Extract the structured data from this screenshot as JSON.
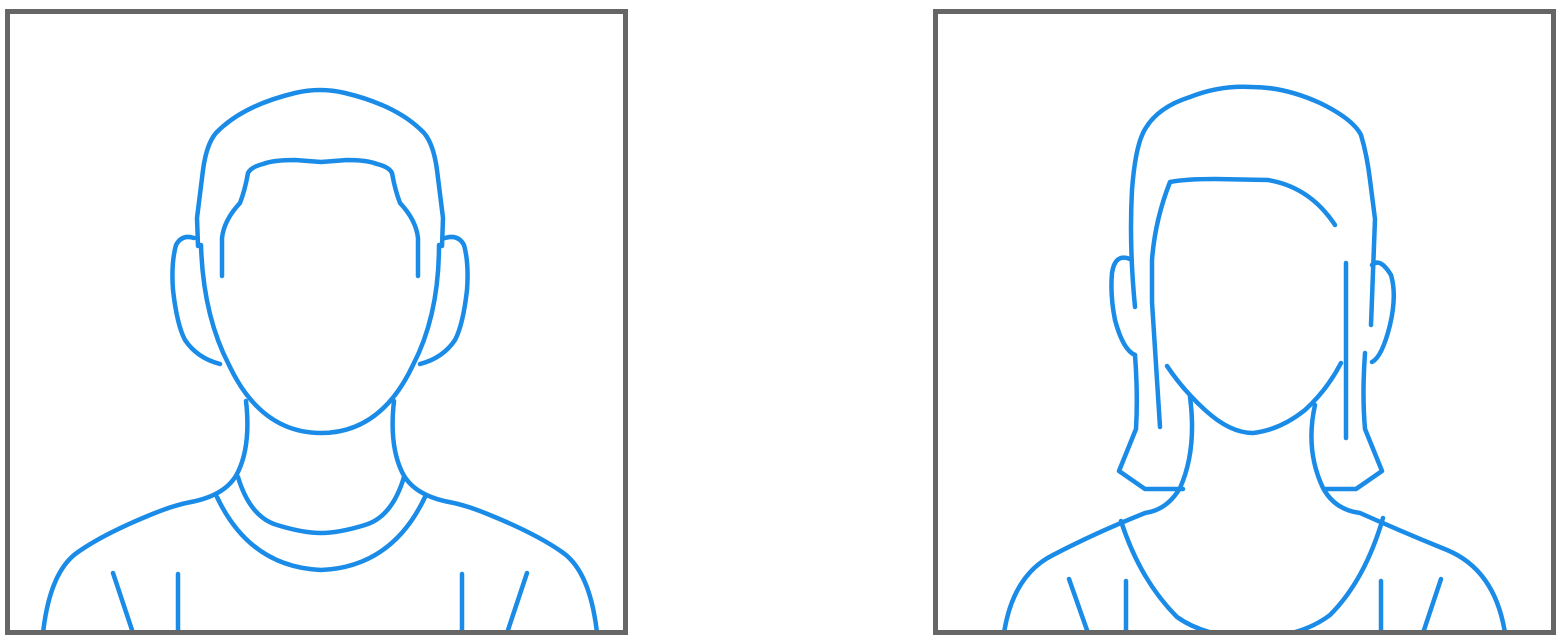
{
  "avatars": [
    {
      "name": "male-avatar-placeholder",
      "icon": "male-silhouette-icon"
    },
    {
      "name": "female-avatar-placeholder",
      "icon": "female-silhouette-icon"
    }
  ],
  "colors": {
    "stroke": "#1a8ce8",
    "frame_border": "#666666",
    "background": "#ffffff"
  }
}
